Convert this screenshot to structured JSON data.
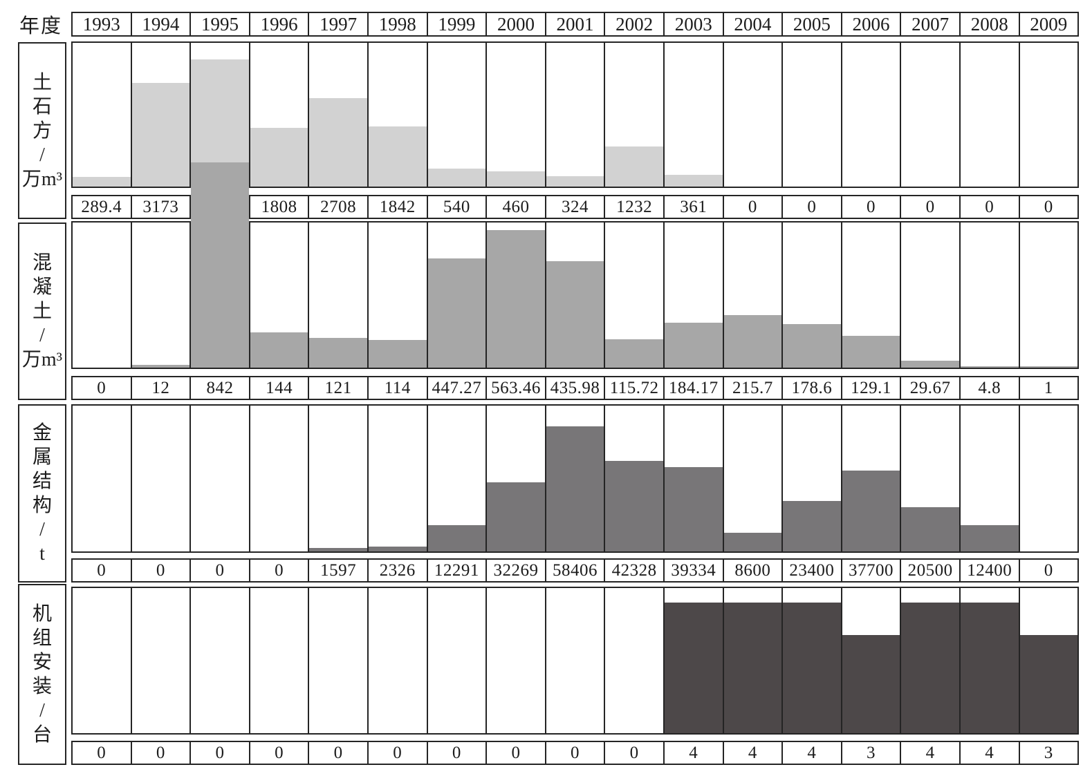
{
  "header": {
    "corner_label": "年度"
  },
  "colors": {
    "border": "#242424",
    "background": "#ffffff",
    "bar_earthwork": "#d2d2d2",
    "bar_concrete": "#a7a7a7",
    "bar_metal": "#787678",
    "bar_units": "#4d4849"
  },
  "chart_data": {
    "type": "bar",
    "title": "",
    "xlabel": "年度",
    "legend": "none",
    "grid": "table-cells",
    "layout": "four stacked single-series bar charts sharing 17 year columns; a bordered value-table row sits under each chart row; vertical category labels with units in a left column",
    "categories": [
      "1993",
      "1994",
      "1995",
      "1996",
      "1997",
      "1998",
      "1999",
      "2000",
      "2001",
      "2002",
      "2003",
      "2004",
      "2005",
      "2006",
      "2007",
      "2008",
      "2009"
    ],
    "series": [
      {
        "name": "土石方/万m³",
        "label_lines": [
          "土",
          "石",
          "方",
          "/",
          "万m³"
        ],
        "ylabel": "土石方/万m³",
        "values": [
          289.4,
          3173,
          3902,
          1808,
          2708,
          1842,
          540,
          460,
          324,
          1232,
          361,
          0,
          0,
          0,
          0,
          0,
          0
        ],
        "ylim": [
          0,
          4400
        ],
        "bar_color": "#d2d2d2"
      },
      {
        "name": "混凝土/万m³",
        "label_lines": [
          "混",
          "凝",
          "土",
          "/",
          "万m³"
        ],
        "ylabel": "混凝土/万m³",
        "values": [
          0,
          12,
          842,
          144,
          121,
          114,
          447.27,
          563.46,
          435.98,
          115.72,
          184.17,
          215.7,
          178.6,
          129.1,
          29.67,
          4.8,
          1
        ],
        "ylim": [
          0,
          595
        ],
        "bar_color": "#a7a7a7"
      },
      {
        "name": "金属结构/t",
        "label_lines": [
          "金",
          "属",
          "结",
          "构",
          "/",
          "t"
        ],
        "ylabel": "金属结构/t",
        "values": [
          0,
          0,
          0,
          0,
          1597,
          2326,
          12291,
          32269,
          58406,
          42328,
          39334,
          8600,
          23400,
          37700,
          20500,
          12400,
          0
        ],
        "ylim": [
          0,
          68000
        ],
        "bar_color": "#787678"
      },
      {
        "name": "机组安装/台",
        "label_lines": [
          "机",
          "组",
          "安",
          "装",
          "/",
          "台"
        ],
        "ylabel": "机组安装/台",
        "values": [
          0,
          0,
          0,
          0,
          0,
          0,
          0,
          0,
          0,
          0,
          4,
          4,
          4,
          3,
          4,
          4,
          3
        ],
        "ylim": [
          0,
          4.45
        ],
        "bar_color": "#4d4849"
      }
    ]
  }
}
